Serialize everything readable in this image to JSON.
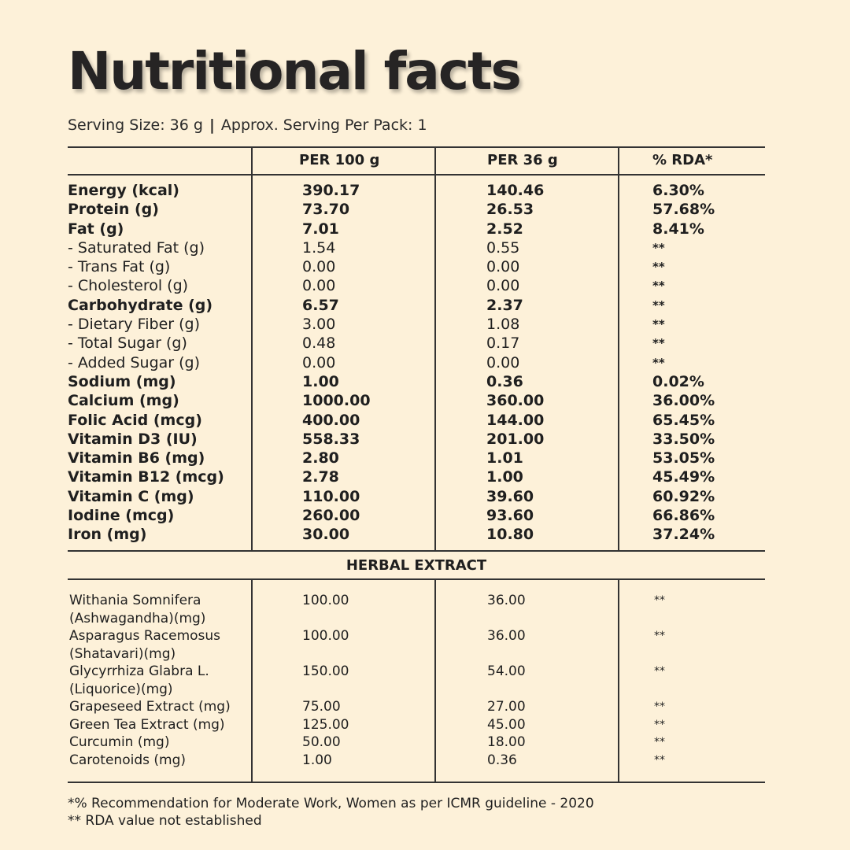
{
  "title": "Nutritional facts",
  "serving": {
    "size": "Serving Size: 36 g",
    "separator": "|",
    "per_pack": "Approx. Serving Per Pack: 1"
  },
  "headers": [
    "PER 100 g",
    "PER 36 g",
    "% RDA*"
  ],
  "nutrients": [
    {
      "name": "Energy (kcal)",
      "per100": "390.17",
      "per36": "140.46",
      "rda": "6.30%",
      "bold": true
    },
    {
      "name": "Protein (g)",
      "per100": "73.70",
      "per36": "26.53",
      "rda": "57.68%",
      "bold": true
    },
    {
      "name": "Fat (g)",
      "per100": "7.01",
      "per36": "2.52",
      "rda": "8.41%",
      "bold": true
    },
    {
      "name": "- Saturated Fat (g)",
      "per100": "1.54",
      "per36": "0.55",
      "rda": "**",
      "bold": false
    },
    {
      "name": "- Trans Fat (g)",
      "per100": "0.00",
      "per36": "0.00",
      "rda": "**",
      "bold": false
    },
    {
      "name": "- Cholesterol (g)",
      "per100": "0.00",
      "per36": "0.00",
      "rda": "**",
      "bold": false
    },
    {
      "name": "Carbohydrate (g)",
      "per100": "6.57",
      "per36": "2.37",
      "rda": "**",
      "bold": true
    },
    {
      "name": "- Dietary Fiber (g)",
      "per100": "3.00",
      "per36": "1.08",
      "rda": "**",
      "bold": false
    },
    {
      "name": "- Total Sugar (g)",
      "per100": "0.48",
      "per36": "0.17",
      "rda": "**",
      "bold": false
    },
    {
      "name": "- Added Sugar (g)",
      "per100": "0.00",
      "per36": "0.00",
      "rda": "**",
      "bold": false
    },
    {
      "name": "Sodium (mg)",
      "per100": "1.00",
      "per36": "0.36",
      "rda": "0.02%",
      "bold": true
    },
    {
      "name": "Calcium (mg)",
      "per100": "1000.00",
      "per36": "360.00",
      "rda": "36.00%",
      "bold": true
    },
    {
      "name": "Folic Acid (mcg)",
      "per100": "400.00",
      "per36": "144.00",
      "rda": "65.45%",
      "bold": true
    },
    {
      "name": "Vitamin D3 (IU)",
      "per100": "558.33",
      "per36": "201.00",
      "rda": "33.50%",
      "bold": true
    },
    {
      "name": "Vitamin B6 (mg)",
      "per100": "2.80",
      "per36": "1.01",
      "rda": "53.05%",
      "bold": true
    },
    {
      "name": "Vitamin B12 (mcg)",
      "per100": "2.78",
      "per36": "1.00",
      "rda": "45.49%",
      "bold": true
    },
    {
      "name": "Vitamin C (mg)",
      "per100": "110.00",
      "per36": "39.60",
      "rda": "60.92%",
      "bold": true
    },
    {
      "name": "Iodine (mcg)",
      "per100": "260.00",
      "per36": "93.60",
      "rda": "66.86%",
      "bold": true
    },
    {
      "name": "Iron (mg)",
      "per100": "30.00",
      "per36": "10.80",
      "rda": "37.24%",
      "bold": true
    }
  ],
  "herbal_title": "HERBAL EXTRACT",
  "herbal": [
    {
      "name": "Withania Somnifera (Ashwagandha)(mg)",
      "per100": "100.00",
      "per36": "36.00",
      "rda": "**"
    },
    {
      "name": "Asparagus Racemosus (Shatavari)(mg)",
      "per100": "100.00",
      "per36": "36.00",
      "rda": "**"
    },
    {
      "name": "Glycyrrhiza Glabra L. (Liquorice)(mg)",
      "per100": "150.00",
      "per36": "54.00",
      "rda": "**"
    },
    {
      "name": "Grapeseed Extract (mg)",
      "per100": "75.00",
      "per36": "27.00",
      "rda": "**"
    },
    {
      "name": "Green Tea Extract (mg)",
      "per100": "125.00",
      "per36": "45.00",
      "rda": "**"
    },
    {
      "name": "Curcumin (mg)",
      "per100": "50.00",
      "per36": "18.00",
      "rda": "**"
    },
    {
      "name": "Carotenoids (mg)",
      "per100": "1.00",
      "per36": "0.36",
      "rda": "**"
    }
  ],
  "footnotes": [
    "*% Recommendation for Moderate Work, Women as per ICMR guideline - 2020",
    "** RDA value not established"
  ]
}
